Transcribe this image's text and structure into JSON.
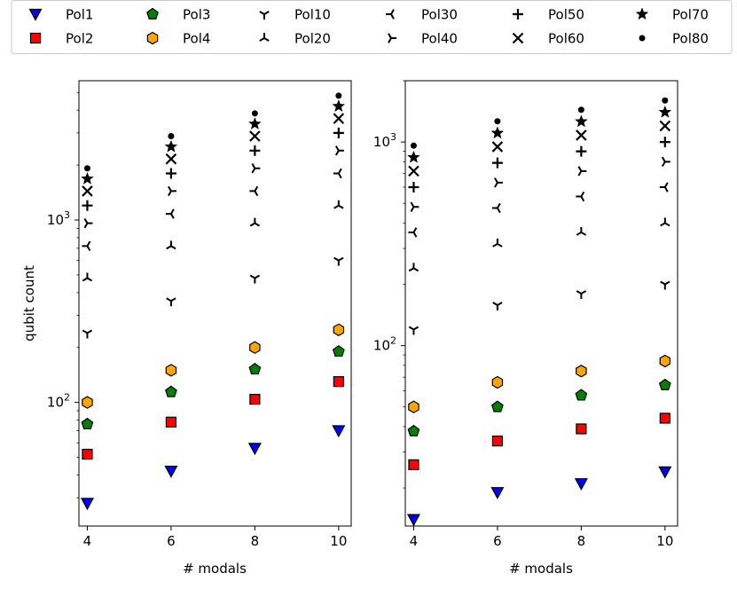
{
  "legend": {
    "placement": "top",
    "entries": [
      {
        "label": "Pol1",
        "marker": "triangle-down",
        "color": "#0000ff"
      },
      {
        "label": "Pol2",
        "marker": "square",
        "color": "#ff0000"
      },
      {
        "label": "Pol3",
        "marker": "pentagon",
        "color": "#008000"
      },
      {
        "label": "Pol4",
        "marker": "hexagon",
        "color": "#ffa500"
      },
      {
        "label": "Pol10",
        "marker": "tri-down",
        "color": "#000000"
      },
      {
        "label": "Pol20",
        "marker": "tri-up",
        "color": "#000000"
      },
      {
        "label": "Pol30",
        "marker": "tri-left",
        "color": "#000000"
      },
      {
        "label": "Pol40",
        "marker": "tri-right",
        "color": "#000000"
      },
      {
        "label": "Pol50",
        "marker": "plus",
        "color": "#000000"
      },
      {
        "label": "Pol60",
        "marker": "x",
        "color": "#000000"
      },
      {
        "label": "Pol70",
        "marker": "star",
        "color": "#000000"
      },
      {
        "label": "Pol80",
        "marker": "dot",
        "color": "#000000"
      }
    ]
  },
  "chart_data": [
    {
      "type": "scatter",
      "title": "",
      "xlabel": "# modals",
      "ylabel": "qubit count",
      "yscale": "log",
      "xlim": [
        3.8,
        10.3
      ],
      "ylim": [
        21,
        5800
      ],
      "x": [
        4,
        6,
        8,
        10
      ],
      "xticks": [
        "4",
        "6",
        "8",
        "10"
      ],
      "yticks": [
        {
          "value": 100,
          "base": "10",
          "exp": "2"
        },
        {
          "value": 1000,
          "base": "10",
          "exp": "3"
        }
      ],
      "series": [
        {
          "name": "Pol1",
          "values": [
            28,
            42,
            56,
            70
          ]
        },
        {
          "name": "Pol2",
          "values": [
            52,
            78,
            104,
            130
          ]
        },
        {
          "name": "Pol3",
          "values": [
            76,
            114,
            152,
            190
          ]
        },
        {
          "name": "Pol4",
          "values": [
            100,
            150,
            200,
            250
          ]
        },
        {
          "name": "Pol10",
          "values": [
            240,
            360,
            480,
            600
          ]
        },
        {
          "name": "Pol20",
          "values": [
            480,
            720,
            960,
            1200
          ]
        },
        {
          "name": "Pol30",
          "values": [
            720,
            1080,
            1440,
            1800
          ]
        },
        {
          "name": "Pol40",
          "values": [
            960,
            1440,
            1920,
            2400
          ]
        },
        {
          "name": "Pol50",
          "values": [
            1200,
            1800,
            2400,
            3000
          ]
        },
        {
          "name": "Pol60",
          "values": [
            1440,
            2160,
            2880,
            3600
          ]
        },
        {
          "name": "Pol70",
          "values": [
            1680,
            2520,
            3360,
            4200
          ]
        },
        {
          "name": "Pol80",
          "values": [
            1920,
            2880,
            3840,
            4800
          ]
        }
      ]
    },
    {
      "type": "scatter",
      "title": "",
      "xlabel": "# modals",
      "ylabel": "",
      "yscale": "log",
      "xlim": [
        3.8,
        10.3
      ],
      "ylim": [
        13,
        2000
      ],
      "x": [
        4,
        6,
        8,
        10
      ],
      "xticks": [
        "4",
        "6",
        "8",
        "10"
      ],
      "yticks": [
        {
          "value": 100,
          "base": "10",
          "exp": "2"
        },
        {
          "value": 1000,
          "base": "10",
          "exp": "3"
        }
      ],
      "series": [
        {
          "name": "Pol1",
          "values": [
            14,
            19,
            21,
            24
          ]
        },
        {
          "name": "Pol2",
          "values": [
            26,
            34,
            39,
            44
          ]
        },
        {
          "name": "Pol3",
          "values": [
            38,
            50,
            57,
            64
          ]
        },
        {
          "name": "Pol4",
          "values": [
            50,
            66,
            75,
            84
          ]
        },
        {
          "name": "Pol10",
          "values": [
            120,
            158,
            180,
            200
          ]
        },
        {
          "name": "Pol20",
          "values": [
            240,
            316,
            360,
            400
          ]
        },
        {
          "name": "Pol30",
          "values": [
            360,
            474,
            540,
            600
          ]
        },
        {
          "name": "Pol40",
          "values": [
            480,
            632,
            720,
            800
          ]
        },
        {
          "name": "Pol50",
          "values": [
            600,
            790,
            900,
            1000
          ]
        },
        {
          "name": "Pol60",
          "values": [
            720,
            948,
            1080,
            1200
          ]
        },
        {
          "name": "Pol70",
          "values": [
            840,
            1106,
            1260,
            1400
          ]
        },
        {
          "name": "Pol80",
          "values": [
            960,
            1264,
            1440,
            1600
          ]
        }
      ]
    }
  ]
}
